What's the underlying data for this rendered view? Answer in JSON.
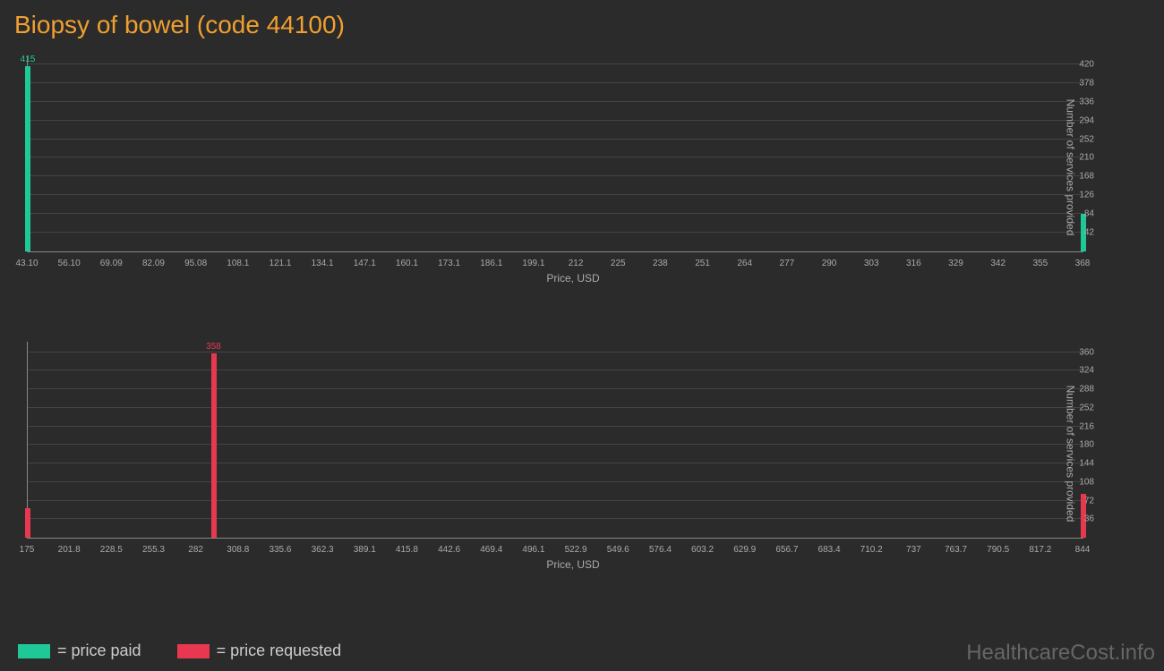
{
  "title": "Biopsy of bowel (code 44100)",
  "watermark": "HealthcareCost.info",
  "colors": {
    "background": "#2b2b2b",
    "title": "#f0a030",
    "axis": "#888888",
    "grid": "#444444",
    "tick_text": "#aaaaaa",
    "paid": "#1ec997",
    "requested": "#e8384f"
  },
  "legend": [
    {
      "swatch": "paid",
      "label": "= price paid"
    },
    {
      "swatch": "requested",
      "label": "= price requested"
    }
  ],
  "chart1": {
    "type": "bar",
    "bar_color_key": "paid",
    "xlabel": "Price, USD",
    "ylabel": "Number of services provided",
    "ylim": [
      0,
      440
    ],
    "yticks": [
      42,
      84,
      126,
      168,
      210,
      252,
      294,
      336,
      378,
      420
    ],
    "xticks": [
      "43.10",
      "56.10",
      "69.09",
      "82.09",
      "95.08",
      "108.1",
      "121.1",
      "134.1",
      "147.1",
      "160.1",
      "173.1",
      "186.1",
      "199.1",
      "212",
      "225",
      "238",
      "251",
      "264",
      "277",
      "290",
      "303",
      "316",
      "329",
      "342",
      "355",
      "368"
    ],
    "bars": [
      {
        "x_index": 0,
        "value": 415,
        "label": "415"
      },
      {
        "x_index": 25,
        "value": 85,
        "label": ""
      }
    ]
  },
  "chart2": {
    "type": "bar",
    "bar_color_key": "requested",
    "xlabel": "Price, USD",
    "ylabel": "Number of services provided",
    "ylim": [
      0,
      380
    ],
    "yticks": [
      36,
      72,
      108,
      144,
      180,
      216,
      252,
      288,
      324,
      360
    ],
    "xticks": [
      "175",
      "201.8",
      "228.5",
      "255.3",
      "282",
      "308.8",
      "335.6",
      "362.3",
      "389.1",
      "415.8",
      "442.6",
      "469.4",
      "496.1",
      "522.9",
      "549.6",
      "576.4",
      "603.2",
      "629.9",
      "656.7",
      "683.4",
      "710.2",
      "737",
      "763.7",
      "790.5",
      "817.2",
      "844"
    ],
    "bars": [
      {
        "x_index": 0,
        "value": 57,
        "label": ""
      },
      {
        "x_index": 4.4,
        "value": 358,
        "label": "358"
      },
      {
        "x_index": 25,
        "value": 85,
        "label": ""
      }
    ]
  }
}
